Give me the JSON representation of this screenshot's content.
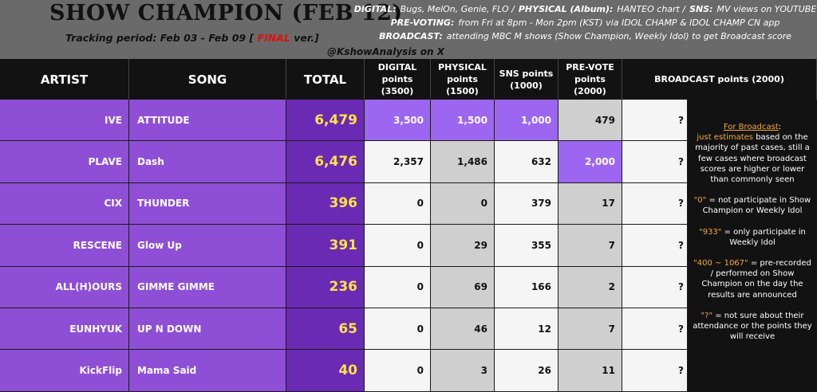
{
  "header": {
    "title": "SHOW CHAMPION (FEB 12)",
    "period_prefix": "Tracking period: Feb 03 - Feb 09 [",
    "period_final": "FINAL",
    "period_suffix": "ver.]",
    "credit": "@KshowAnalysis on X",
    "legend": [
      {
        "label": "DIGITAL:",
        "text": "Bugs, MelOn, Genie, FLO /"
      },
      {
        "label": "PHYSICAL (Album):",
        "text": "HANTEO chart /"
      },
      {
        "label": "SNS:",
        "text": "MV views on YOUTUBE"
      },
      {
        "label": "PRE-VOTING:",
        "text": "from Fri at 8pm - Mon 2pm (KST) via IDOL CHAMP & IDOL CHAMP CN app"
      },
      {
        "label": "BROADCAST:",
        "text": "attending MBC M shows (Show Champion, Weekly Idol) to get Broadcast score"
      }
    ]
  },
  "columns": {
    "artist": "ARTIST",
    "song": "SONG",
    "total": "TOTAL",
    "digital_1": "DIGITAL",
    "digital_2": "points",
    "digital_3": "(3500)",
    "physical_1": "PHYSICAL",
    "physical_2": "points",
    "physical_3": "(1500)",
    "sns_1": "SNS points",
    "sns_2": "(1000)",
    "prevote_1": "PRE-VOTE",
    "prevote_2": "points",
    "prevote_3": "(2000)",
    "broadcast": "BROADCAST points (2000)"
  },
  "rows": [
    {
      "artist": "IVE",
      "song": "ATTITUDE",
      "total": "6,479",
      "digital": "3,500",
      "physical": "1,500",
      "sns": "1,000",
      "prevote": "479",
      "broadcast": "?"
    },
    {
      "artist": "PLAVE",
      "song": "Dash",
      "total": "6,476",
      "digital": "2,357",
      "physical": "1,486",
      "sns": "632",
      "prevote": "2,000",
      "broadcast": "?"
    },
    {
      "artist": "CIX",
      "song": "THUNDER",
      "total": "396",
      "digital": "0",
      "physical": "0",
      "sns": "379",
      "prevote": "17",
      "broadcast": "?"
    },
    {
      "artist": "RESCENE",
      "song": "Glow Up",
      "total": "391",
      "digital": "0",
      "physical": "29",
      "sns": "355",
      "prevote": "7",
      "broadcast": "?"
    },
    {
      "artist": "ALL(H)OURS",
      "song": "GIMME GIMME",
      "total": "236",
      "digital": "0",
      "physical": "69",
      "sns": "166",
      "prevote": "2",
      "broadcast": "?"
    },
    {
      "artist": "EUNHYUK",
      "song": "UP N DOWN",
      "total": "65",
      "digital": "0",
      "physical": "46",
      "sns": "12",
      "prevote": "7",
      "broadcast": "?"
    },
    {
      "artist": "KickFlip",
      "song": "Mama Said",
      "total": "40",
      "digital": "0",
      "physical": "3",
      "sns": "26",
      "prevote": "11",
      "broadcast": "?"
    }
  ],
  "note": {
    "title": "For Broadcast",
    "title_colon": ":",
    "p1_highlight": "just estimates",
    "p1_text": "based on the majority of past cases, still a few cases where broadcast scores are higher or lower than commonly seen",
    "p2_highlight": "\"0\"",
    "p2_text": "= not participate in Show Champion or Weekly Idol",
    "p3_highlight": "\"933\"",
    "p3_text": "= only participate in Weekly Idol",
    "p4_highlight": "\"400 ~ 1067\"",
    "p4_text": "= pre-recorded / performed on Show Champion on the day the results are announced",
    "p5_highlight": "\"?\"",
    "p5_text": "= not sure about their attendance or the points they will receive"
  },
  "colors": {
    "purple_light": "#8e4fd6",
    "purple_dark": "#6a2ab4",
    "highlight": "#9d66f0",
    "total_text": "#ffe14a",
    "final_red": "#e11010",
    "note_orange": "#f2a93a"
  }
}
